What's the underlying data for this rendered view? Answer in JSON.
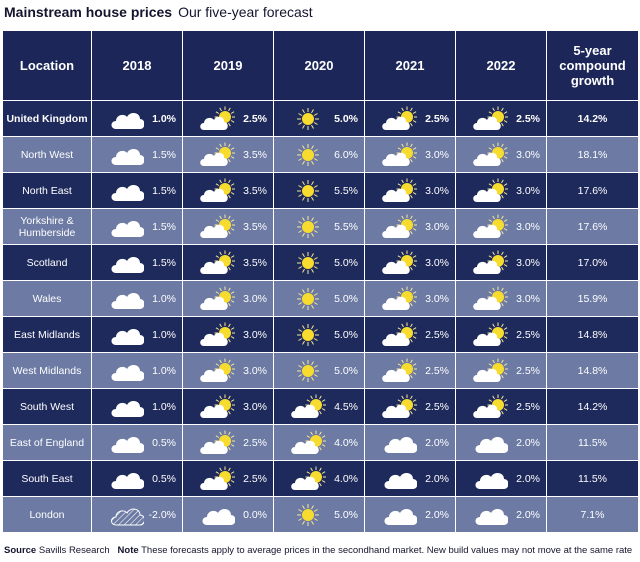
{
  "title": {
    "main": "Mainstream house prices",
    "sub": "Our five-year forecast"
  },
  "headers": [
    "Location",
    "2018",
    "2019",
    "2020",
    "2021",
    "2022",
    "5-year compound growth"
  ],
  "rows": [
    {
      "location": "United Kingdom",
      "cells": [
        {
          "icon": "cloud-icon",
          "value": "1.0%"
        },
        {
          "icon": "sun-behind-cloud-icon",
          "value": "2.5%"
        },
        {
          "icon": "sun-icon",
          "value": "5.0%"
        },
        {
          "icon": "sun-behind-cloud-icon",
          "value": "2.5%"
        },
        {
          "icon": "sun-behind-cloud-icon",
          "value": "2.5%"
        }
      ],
      "growth": "14.2%"
    },
    {
      "location": "North West",
      "cells": [
        {
          "icon": "cloud-icon",
          "value": "1.5%"
        },
        {
          "icon": "sun-behind-cloud-icon",
          "value": "3.5%"
        },
        {
          "icon": "sun-icon",
          "value": "6.0%"
        },
        {
          "icon": "sun-behind-cloud-icon",
          "value": "3.0%"
        },
        {
          "icon": "sun-behind-cloud-icon",
          "value": "3.0%"
        }
      ],
      "growth": "18.1%"
    },
    {
      "location": "North East",
      "cells": [
        {
          "icon": "cloud-icon",
          "value": "1.5%"
        },
        {
          "icon": "sun-behind-cloud-icon",
          "value": "3.5%"
        },
        {
          "icon": "sun-icon",
          "value": "5.5%"
        },
        {
          "icon": "sun-behind-cloud-icon",
          "value": "3.0%"
        },
        {
          "icon": "sun-behind-cloud-icon",
          "value": "3.0%"
        }
      ],
      "growth": "17.6%"
    },
    {
      "location": "Yorkshire & Humberside",
      "cells": [
        {
          "icon": "cloud-icon",
          "value": "1.5%"
        },
        {
          "icon": "sun-behind-cloud-icon",
          "value": "3.5%"
        },
        {
          "icon": "sun-icon",
          "value": "5.5%"
        },
        {
          "icon": "sun-behind-cloud-icon",
          "value": "3.0%"
        },
        {
          "icon": "sun-behind-cloud-icon",
          "value": "3.0%"
        }
      ],
      "growth": "17.6%"
    },
    {
      "location": "Scotland",
      "cells": [
        {
          "icon": "cloud-icon",
          "value": "1.5%"
        },
        {
          "icon": "sun-behind-cloud-icon",
          "value": "3.5%"
        },
        {
          "icon": "sun-icon",
          "value": "5.0%"
        },
        {
          "icon": "sun-behind-cloud-icon",
          "value": "3.0%"
        },
        {
          "icon": "sun-behind-cloud-icon",
          "value": "3.0%"
        }
      ],
      "growth": "17.0%"
    },
    {
      "location": "Wales",
      "cells": [
        {
          "icon": "cloud-icon",
          "value": "1.0%"
        },
        {
          "icon": "sun-behind-cloud-icon",
          "value": "3.0%"
        },
        {
          "icon": "sun-icon",
          "value": "5.0%"
        },
        {
          "icon": "sun-behind-cloud-icon",
          "value": "3.0%"
        },
        {
          "icon": "sun-behind-cloud-icon",
          "value": "3.0%"
        }
      ],
      "growth": "15.9%"
    },
    {
      "location": "East Midlands",
      "cells": [
        {
          "icon": "cloud-icon",
          "value": "1.0%"
        },
        {
          "icon": "sun-behind-cloud-icon",
          "value": "3.0%"
        },
        {
          "icon": "sun-icon",
          "value": "5.0%"
        },
        {
          "icon": "sun-behind-cloud-icon",
          "value": "2.5%"
        },
        {
          "icon": "sun-behind-cloud-icon",
          "value": "2.5%"
        }
      ],
      "growth": "14.8%"
    },
    {
      "location": "West Midlands",
      "cells": [
        {
          "icon": "cloud-icon",
          "value": "1.0%"
        },
        {
          "icon": "sun-behind-cloud-icon",
          "value": "3.0%"
        },
        {
          "icon": "sun-icon",
          "value": "5.0%"
        },
        {
          "icon": "sun-behind-cloud-icon",
          "value": "2.5%"
        },
        {
          "icon": "sun-behind-cloud-icon",
          "value": "2.5%"
        }
      ],
      "growth": "14.8%"
    },
    {
      "location": "South West",
      "cells": [
        {
          "icon": "cloud-icon",
          "value": "1.0%"
        },
        {
          "icon": "sun-behind-cloud-icon",
          "value": "3.0%"
        },
        {
          "icon": "sun-behind-cloud-icon",
          "value": "4.5%"
        },
        {
          "icon": "sun-behind-cloud-icon",
          "value": "2.5%"
        },
        {
          "icon": "sun-behind-cloud-icon",
          "value": "2.5%"
        }
      ],
      "growth": "14.2%"
    },
    {
      "location": "East of England",
      "cells": [
        {
          "icon": "cloud-icon",
          "value": "0.5%"
        },
        {
          "icon": "sun-behind-cloud-icon",
          "value": "2.5%"
        },
        {
          "icon": "sun-behind-cloud-icon",
          "value": "4.0%"
        },
        {
          "icon": "cloud-icon",
          "value": "2.0%"
        },
        {
          "icon": "cloud-icon",
          "value": "2.0%"
        }
      ],
      "growth": "11.5%"
    },
    {
      "location": "South East",
      "cells": [
        {
          "icon": "cloud-icon",
          "value": "0.5%"
        },
        {
          "icon": "sun-behind-cloud-icon",
          "value": "2.5%"
        },
        {
          "icon": "sun-behind-cloud-icon",
          "value": "4.0%"
        },
        {
          "icon": "cloud-icon",
          "value": "2.0%"
        },
        {
          "icon": "cloud-icon",
          "value": "2.0%"
        }
      ],
      "growth": "11.5%"
    },
    {
      "location": "London",
      "cells": [
        {
          "icon": "rain-cloud-icon",
          "value": "-2.0%"
        },
        {
          "icon": "cloud-icon",
          "value": "0.0%"
        },
        {
          "icon": "sun-icon",
          "value": "5.0%"
        },
        {
          "icon": "cloud-icon",
          "value": "2.0%"
        },
        {
          "icon": "cloud-icon",
          "value": "2.0%"
        }
      ],
      "growth": "7.1%"
    }
  ],
  "footer": {
    "source_label": "Source",
    "source_text": "Savills Research",
    "note_label": "Note",
    "note_text": "These forecasts apply to average prices in the secondhand market. New build values may not move at the same rate"
  },
  "colors": {
    "header_bg": "#1c2659",
    "row_dark": "#1f2a5c",
    "row_light": "#6c7aa4",
    "sun": "#f7dc2f",
    "cloud": "#ffffff"
  }
}
